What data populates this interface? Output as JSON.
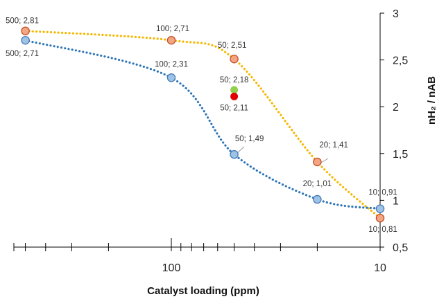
{
  "chart_data": {
    "type": "scatter",
    "xlabel": "Catalyst loading (ppm)",
    "ylabel": "nH₂ / nAB",
    "x_scale": "log",
    "x_reversed": true,
    "xlim": [
      10,
      500
    ],
    "ylim": [
      0.5,
      3
    ],
    "y_ticks": [
      "0,5",
      "1",
      "1,5",
      "2",
      "2,5",
      "3"
    ],
    "x_tick_labels": [
      "100",
      "10"
    ],
    "colors": {
      "orange_marker": "#f4a582",
      "orange_line": "#f5b800",
      "blue_marker": "#9dc3e6",
      "blue_line": "#2e75b6",
      "green_marker": "#92d050",
      "red_marker": "#e00000"
    },
    "series": [
      {
        "color_key": "orange",
        "points": [
          {
            "x": 500,
            "y": 2.81,
            "label": "500; 2,81"
          },
          {
            "x": 100,
            "y": 2.71,
            "label": "100; 2,71"
          },
          {
            "x": 50,
            "y": 2.51,
            "label": "50; 2,51"
          },
          {
            "x": 20,
            "y": 1.41,
            "label": "20; 1,41"
          },
          {
            "x": 10,
            "y": 0.81,
            "label": "10; 0,81"
          }
        ]
      },
      {
        "color_key": "blue",
        "points": [
          {
            "x": 500,
            "y": 2.71,
            "label": "500; 2,71"
          },
          {
            "x": 100,
            "y": 2.31,
            "label": "100; 2,31"
          },
          {
            "x": 50,
            "y": 1.49,
            "label": "50; 1,49"
          },
          {
            "x": 20,
            "y": 1.01,
            "label": "20; 1,01"
          },
          {
            "x": 10,
            "y": 0.91,
            "label": "10; 0,91"
          }
        ]
      }
    ],
    "extra_points": [
      {
        "x": 50,
        "y": 2.18,
        "label": "50; 2,18",
        "color_key": "green"
      },
      {
        "x": 50,
        "y": 2.11,
        "label": "50; 2,11",
        "color_key": "red"
      }
    ]
  }
}
